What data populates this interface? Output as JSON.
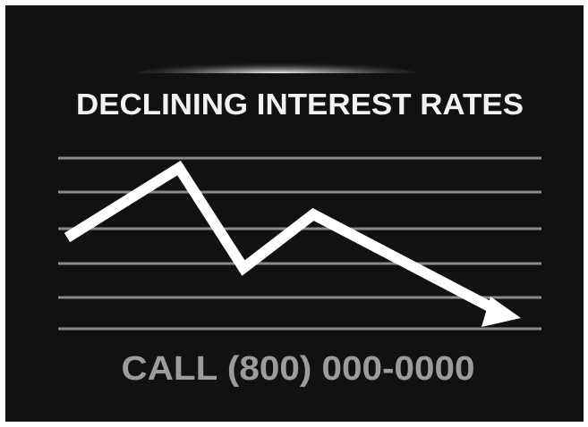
{
  "title": "DECLINING INTEREST RATES",
  "call": "CALL (800) 000-0000"
}
